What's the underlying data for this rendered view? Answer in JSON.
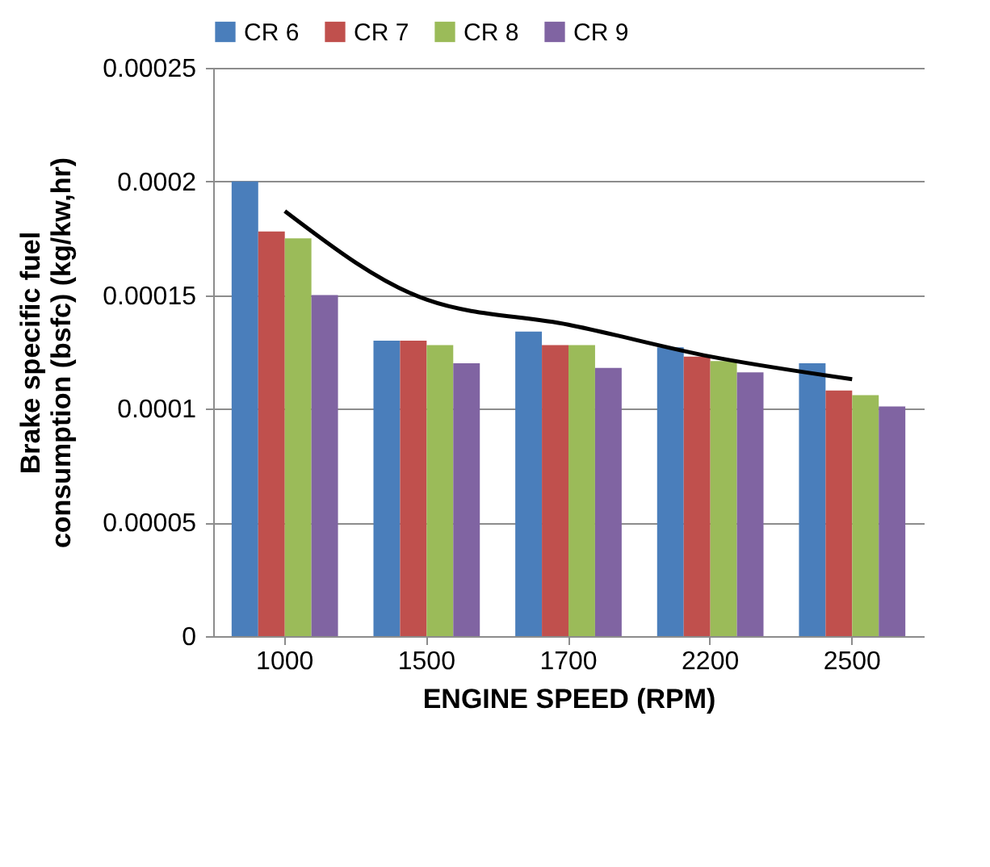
{
  "chart_data": {
    "type": "bar",
    "ylabel": "Brake specific fuel consumption (bsfc) (kg/kw,hr)",
    "xlabel": "ENGINE SPEED (RPM)",
    "categories": [
      "1000",
      "1500",
      "1700",
      "2200",
      "2500"
    ],
    "series": [
      {
        "name": "CR 6",
        "color": "#4a7ebb",
        "values": [
          0.0002,
          0.00013,
          0.000134,
          0.000127,
          0.00012
        ]
      },
      {
        "name": "CR 7",
        "color": "#c0504d",
        "values": [
          0.000178,
          0.00013,
          0.000128,
          0.000123,
          0.000108
        ]
      },
      {
        "name": "CR 8",
        "color": "#9bbb59",
        "values": [
          0.000175,
          0.000128,
          0.000128,
          0.000121,
          0.000106
        ]
      },
      {
        "name": "CR 9",
        "color": "#8064a2",
        "values": [
          0.00015,
          0.00012,
          0.000118,
          0.000116,
          0.000101
        ]
      },
      {
        "type": "line",
        "color": "#000000",
        "values": [
          0.000187,
          0.000148,
          0.000137,
          0.000123,
          0.000113
        ]
      }
    ],
    "ylim": [
      0,
      0.00025
    ],
    "yticks": [
      0,
      {
        "value": 5e-05,
        "label": "0.00005"
      },
      0.0001,
      0.00015,
      0.0002,
      0.00025
    ],
    "grid": "y",
    "legend": "top"
  }
}
